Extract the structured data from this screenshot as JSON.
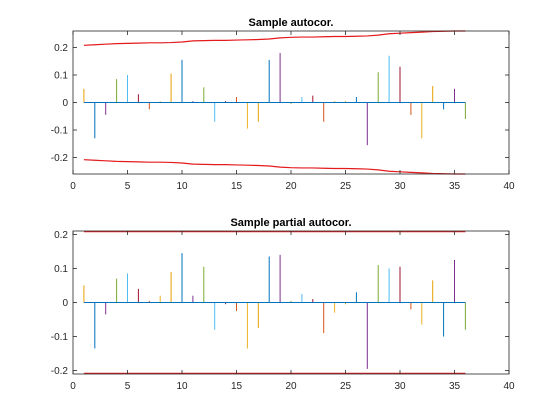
{
  "chart_data": [
    {
      "type": "stem",
      "title": "Sample autocor.",
      "xlabel": "",
      "ylabel": "",
      "xlim": [
        0,
        40
      ],
      "ylim": [
        -0.26,
        0.26
      ],
      "xticks": [
        0,
        5,
        10,
        15,
        20,
        25,
        30,
        35,
        40
      ],
      "yticks": [
        -0.2,
        -0.1,
        0,
        0.1,
        0.2
      ],
      "xtick_labels": [
        "0",
        "5",
        "10",
        "15",
        "20",
        "25",
        "30",
        "35",
        "40"
      ],
      "ytick_labels": [
        "-0.2",
        "-0.1",
        "0",
        "0.1",
        "0.2"
      ],
      "grid": false,
      "lags": [
        1,
        2,
        3,
        4,
        5,
        6,
        7,
        8,
        9,
        10,
        11,
        12,
        13,
        14,
        15,
        16,
        17,
        18,
        19,
        20,
        21,
        22,
        23,
        24,
        25,
        26,
        27,
        28,
        29,
        30,
        31,
        32,
        33,
        34,
        35,
        36
      ],
      "values": [
        0.05,
        -0.13,
        -0.045,
        0.085,
        0.1,
        0.03,
        -0.025,
        0.005,
        0.105,
        0.155,
        0.005,
        0.055,
        -0.07,
        0.005,
        0.02,
        -0.095,
        -0.07,
        0.155,
        0.18,
        -0.005,
        0.02,
        0.025,
        -0.07,
        0.005,
        0.005,
        0.02,
        -0.155,
        0.11,
        0.17,
        0.13,
        -0.045,
        -0.13,
        0.06,
        -0.025,
        0.05,
        -0.06
      ],
      "bound_series": {
        "name": "",
        "color": "#e41a1c",
        "upper": [
          0.208,
          0.21,
          0.212,
          0.214,
          0.215,
          0.216,
          0.217,
          0.217,
          0.218,
          0.22,
          0.224,
          0.225,
          0.226,
          0.226,
          0.227,
          0.228,
          0.229,
          0.231,
          0.235,
          0.237,
          0.238,
          0.238,
          0.239,
          0.24,
          0.24,
          0.241,
          0.242,
          0.245,
          0.25,
          0.252,
          0.254,
          0.256,
          0.258,
          0.259,
          0.26,
          0.26
        ],
        "lower": [
          -0.208,
          -0.21,
          -0.212,
          -0.214,
          -0.215,
          -0.216,
          -0.217,
          -0.217,
          -0.218,
          -0.22,
          -0.224,
          -0.225,
          -0.226,
          -0.226,
          -0.227,
          -0.228,
          -0.229,
          -0.231,
          -0.235,
          -0.237,
          -0.238,
          -0.238,
          -0.239,
          -0.24,
          -0.24,
          -0.241,
          -0.242,
          -0.245,
          -0.25,
          -0.252,
          -0.254,
          -0.256,
          -0.258,
          -0.259,
          -0.26,
          -0.26
        ]
      }
    },
    {
      "type": "stem",
      "title": "Sample partial autocor.",
      "xlabel": "",
      "ylabel": "",
      "xlim": [
        0,
        40
      ],
      "ylim": [
        -0.21,
        0.21
      ],
      "xticks": [
        0,
        5,
        10,
        15,
        20,
        25,
        30,
        35,
        40
      ],
      "yticks": [
        -0.2,
        -0.1,
        0,
        0.1,
        0.2
      ],
      "xtick_labels": [
        "0",
        "5",
        "10",
        "15",
        "20",
        "25",
        "30",
        "35",
        "40"
      ],
      "ytick_labels": [
        "-0.2",
        "-0.1",
        "0",
        "0.1",
        "0.2"
      ],
      "grid": false,
      "lags": [
        1,
        2,
        3,
        4,
        5,
        6,
        7,
        8,
        9,
        10,
        11,
        12,
        13,
        14,
        15,
        16,
        17,
        18,
        19,
        20,
        21,
        22,
        23,
        24,
        25,
        26,
        27,
        28,
        29,
        30,
        31,
        32,
        33,
        34,
        35,
        36
      ],
      "values": [
        0.05,
        -0.135,
        -0.035,
        0.07,
        0.085,
        0.04,
        0.005,
        0.02,
        0.09,
        0.145,
        0.02,
        0.105,
        -0.08,
        -0.005,
        -0.025,
        -0.135,
        -0.075,
        0.135,
        0.14,
        0.005,
        0.025,
        0.01,
        -0.09,
        -0.03,
        -0.005,
        0.03,
        -0.195,
        0.11,
        0.1,
        0.105,
        -0.02,
        -0.065,
        0.065,
        -0.1,
        0.125,
        -0.08
      ],
      "bound_series": {
        "name": "",
        "color": "#e41a1c",
        "upper_value": 0.208,
        "lower_value": -0.208
      }
    }
  ],
  "stem_colors": [
    "#e69f00",
    "#0072bd",
    "#7e2f8e",
    "#77ac30",
    "#4dbeee",
    "#a2142f",
    "#d95319",
    "#edb120"
  ]
}
